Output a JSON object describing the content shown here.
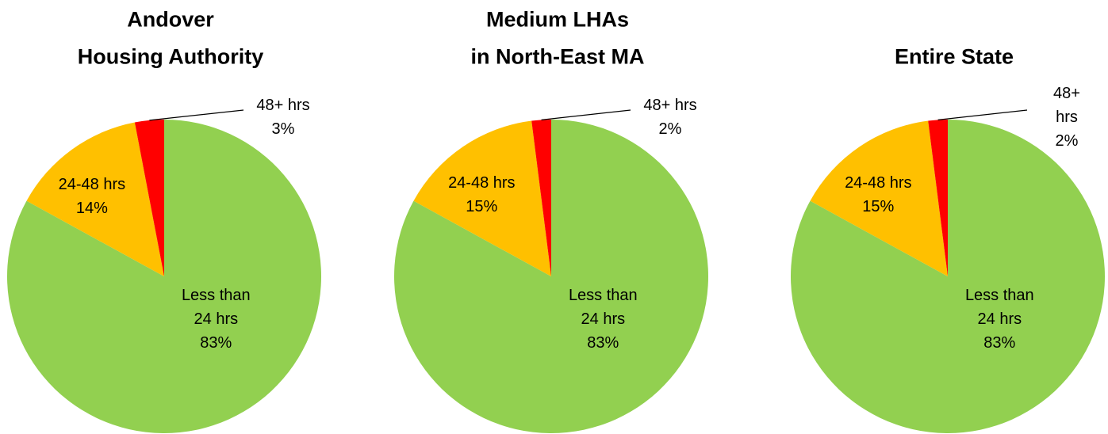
{
  "chart_data": [
    {
      "type": "pie",
      "title": [
        "Andover",
        "Housing Authority"
      ],
      "categories": [
        "Less than 24 hrs",
        "24-48 hrs",
        "48+ hrs"
      ],
      "values": [
        83,
        14,
        3
      ],
      "value_labels": [
        "83%",
        "14%",
        "3%"
      ],
      "colors": [
        "#92d050",
        "#ffc000",
        "#ff0000"
      ]
    },
    {
      "type": "pie",
      "title": [
        "Medium LHAs",
        "in North-East MA"
      ],
      "categories": [
        "Less than 24 hrs",
        "24-48 hrs",
        "48+ hrs"
      ],
      "values": [
        83,
        15,
        2
      ],
      "value_labels": [
        "83%",
        "15%",
        "2%"
      ],
      "colors": [
        "#92d050",
        "#ffc000",
        "#ff0000"
      ]
    },
    {
      "type": "pie",
      "title": [
        "Entire State"
      ],
      "categories": [
        "Less than 24 hrs",
        "24-48 hrs",
        "48+ hrs"
      ],
      "values": [
        83,
        15,
        2
      ],
      "value_labels": [
        "83%",
        "15%",
        "2%"
      ],
      "colors": [
        "#92d050",
        "#ffc000",
        "#ff0000"
      ]
    }
  ]
}
